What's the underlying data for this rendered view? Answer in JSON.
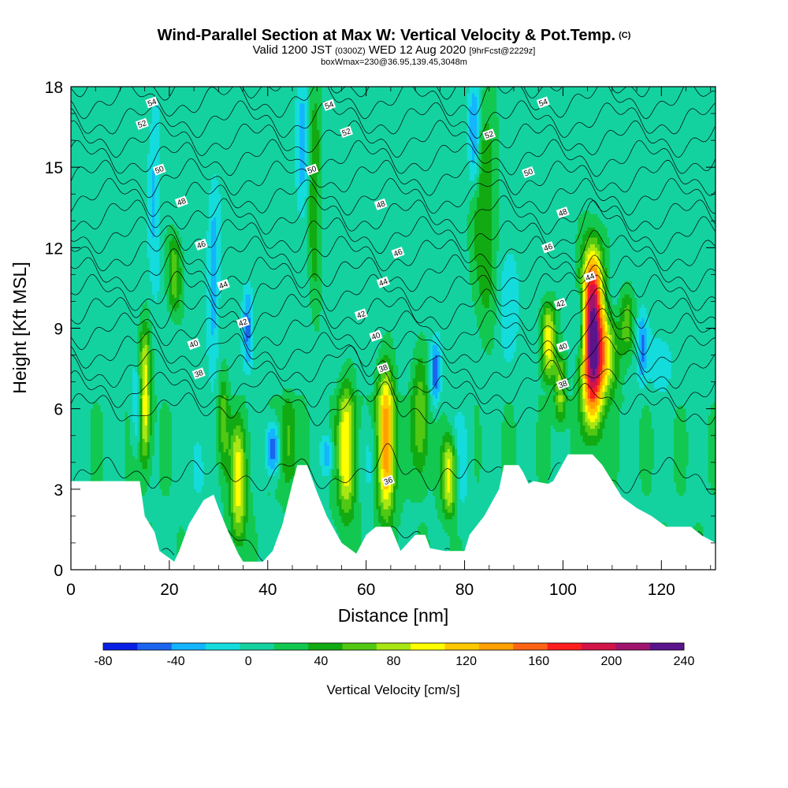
{
  "title": {
    "main": "Wind-Parallel Section at Max W: Vertical Velocity & Pot.Temp.",
    "copyright": "(C)",
    "valid_prefix": "Valid 1200 JST",
    "valid_utc": "(0300Z)",
    "valid_date": "WED 12 Aug 2020",
    "forecast": "[9hrFcst@2229z]",
    "box_info": "boxWmax=230@36.95,139.45,3048m"
  },
  "chart_data": {
    "type": "heatmap",
    "xlabel": "Distance [nm]",
    "ylabel": "Height [Kft MSL]",
    "xlim": [
      0,
      131
    ],
    "ylim": [
      0,
      18
    ],
    "x_ticks": [
      "0",
      "20",
      "40",
      "60",
      "80",
      "100",
      "120"
    ],
    "y_ticks": [
      "0",
      "3",
      "6",
      "9",
      "12",
      "15",
      "18"
    ],
    "colorbar": {
      "title": "Vertical Velocity [cm/s]",
      "levels": [
        -80,
        -60,
        -40,
        -20,
        0,
        20,
        40,
        60,
        80,
        100,
        120,
        140,
        160,
        180,
        200,
        220,
        240
      ],
      "tick_labels": [
        "-80",
        "-40",
        "0",
        "40",
        "80",
        "120",
        "160",
        "200",
        "240"
      ],
      "colors": [
        "#0a1fe6",
        "#1a64f0",
        "#14b4ff",
        "#14dcdc",
        "#14d2a0",
        "#12c850",
        "#12aa12",
        "#50c814",
        "#a8e614",
        "#ffff00",
        "#ffc800",
        "#ffa000",
        "#ff6414",
        "#ff1e1e",
        "#d21446",
        "#a0146e",
        "#5a148c"
      ]
    },
    "terrain_kft": [
      [
        0,
        3.3
      ],
      [
        14,
        3.3
      ],
      [
        15,
        2.0
      ],
      [
        17,
        1.4
      ],
      [
        18,
        0.7
      ],
      [
        21,
        0.3
      ],
      [
        22,
        0.7
      ],
      [
        24,
        1.7
      ],
      [
        27,
        2.6
      ],
      [
        29,
        2.8
      ],
      [
        30,
        2.3
      ],
      [
        32,
        1.4
      ],
      [
        34,
        0.6
      ],
      [
        35,
        0.3
      ],
      [
        39,
        0.3
      ],
      [
        41,
        0.7
      ],
      [
        43,
        1.7
      ],
      [
        45,
        3.2
      ],
      [
        46,
        3.9
      ],
      [
        48,
        3.9
      ],
      [
        50,
        2.9
      ],
      [
        52,
        2.0
      ],
      [
        55,
        1.0
      ],
      [
        58,
        0.6
      ],
      [
        60,
        1.3
      ],
      [
        62,
        1.6
      ],
      [
        65,
        1.6
      ],
      [
        67,
        0.7
      ],
      [
        68,
        0.9
      ],
      [
        70,
        1.3
      ],
      [
        72,
        1.3
      ],
      [
        73,
        0.8
      ],
      [
        76,
        0.7
      ],
      [
        80,
        0.7
      ],
      [
        81,
        1.3
      ],
      [
        84,
        2.0
      ],
      [
        87,
        3.0
      ],
      [
        88,
        3.9
      ],
      [
        91,
        3.9
      ],
      [
        92,
        3.6
      ],
      [
        93,
        3.2
      ],
      [
        94,
        3.3
      ],
      [
        97,
        3.2
      ],
      [
        98,
        3.3
      ],
      [
        101,
        4.3
      ],
      [
        106,
        4.3
      ],
      [
        108,
        3.9
      ],
      [
        110,
        3.3
      ],
      [
        112,
        2.7
      ],
      [
        115,
        2.3
      ],
      [
        118,
        2.0
      ],
      [
        121,
        1.6
      ],
      [
        126,
        1.6
      ],
      [
        128,
        1.3
      ],
      [
        131,
        1.0
      ]
    ],
    "updrafts": [
      {
        "x": 15.0,
        "y0": 4.0,
        "y1": 9.0,
        "width": 1.2,
        "peak": 100
      },
      {
        "x": 21.0,
        "y0": 9.5,
        "y1": 12.5,
        "width": 1.5,
        "peak": 60
      },
      {
        "x": 31.0,
        "y0": 3.5,
        "y1": 7.5,
        "width": 1.2,
        "peak": 50
      },
      {
        "x": 34.0,
        "y0": 1.0,
        "y1": 5.5,
        "width": 1.6,
        "peak": 90
      },
      {
        "x": 44.0,
        "y0": 3.0,
        "y1": 6.5,
        "width": 1.8,
        "peak": 50
      },
      {
        "x": 49.5,
        "y0": 10.0,
        "y1": 18.0,
        "width": 1.2,
        "peak": 50
      },
      {
        "x": 56.0,
        "y0": 2.0,
        "y1": 7.0,
        "width": 1.8,
        "peak": 100
      },
      {
        "x": 64.0,
        "y0": 2.0,
        "y1": 7.5,
        "width": 1.8,
        "peak": 140
      },
      {
        "x": 71.0,
        "y0": 3.5,
        "y1": 8.0,
        "width": 1.8,
        "peak": 60
      },
      {
        "x": 77.0,
        "y0": 2.0,
        "y1": 5.0,
        "width": 1.5,
        "peak": 100
      },
      {
        "x": 84.0,
        "y0": 9.0,
        "y1": 17.5,
        "width": 2.5,
        "peak": 50
      },
      {
        "x": 97.0,
        "y0": 7.0,
        "y1": 10.0,
        "width": 1.5,
        "peak": 100
      },
      {
        "x": 99.5,
        "y0": 5.5,
        "y1": 8.0,
        "width": 1.2,
        "peak": 70
      },
      {
        "x": 106.0,
        "y0": 5.5,
        "y1": 12.0,
        "width": 2.2,
        "peak": 230
      },
      {
        "x": 109.0,
        "y0": 6.5,
        "y1": 9.5,
        "width": 2.5,
        "peak": 80
      },
      {
        "x": 113.0,
        "y0": 8.0,
        "y1": 10.5,
        "width": 1.5,
        "peak": 50
      }
    ],
    "downdrafts": [
      {
        "x": 13.5,
        "y0": 4.5,
        "y1": 7.5,
        "width": 1.0,
        "peak": -45
      },
      {
        "x": 17.0,
        "y0": 10.0,
        "y1": 17.5,
        "width": 1.2,
        "peak": -30
      },
      {
        "x": 26.0,
        "y0": 2.0,
        "y1": 6.0,
        "width": 2.5,
        "peak": -25
      },
      {
        "x": 29.0,
        "y0": 7.0,
        "y1": 14.0,
        "width": 1.2,
        "peak": -40
      },
      {
        "x": 36.0,
        "y0": 7.5,
        "y1": 10.5,
        "width": 1.0,
        "peak": -60
      },
      {
        "x": 41.0,
        "y0": 3.5,
        "y1": 5.5,
        "width": 1.6,
        "peak": -70
      },
      {
        "x": 47.0,
        "y0": 13.0,
        "y1": 18.0,
        "width": 1.2,
        "peak": -40
      },
      {
        "x": 52.0,
        "y0": 3.5,
        "y1": 5.0,
        "width": 1.2,
        "peak": -45
      },
      {
        "x": 61.0,
        "y0": 2.5,
        "y1": 5.5,
        "width": 2.0,
        "peak": -30
      },
      {
        "x": 74.0,
        "y0": 6.0,
        "y1": 8.5,
        "width": 1.0,
        "peak": -60
      },
      {
        "x": 79.0,
        "y0": 2.0,
        "y1": 6.0,
        "width": 2.0,
        "peak": -35
      },
      {
        "x": 82.0,
        "y0": 14.0,
        "y1": 18.0,
        "width": 1.2,
        "peak": -60
      },
      {
        "x": 89.0,
        "y0": 8.0,
        "y1": 12.0,
        "width": 2.0,
        "peak": -25
      },
      {
        "x": 103.5,
        "y0": 8.0,
        "y1": 10.5,
        "width": 1.0,
        "peak": -50
      },
      {
        "x": 116.0,
        "y0": 7.0,
        "y1": 9.5,
        "width": 1.0,
        "peak": -50
      },
      {
        "x": 120.0,
        "y0": 6.5,
        "y1": 9.0,
        "width": 2.5,
        "peak": -20
      }
    ],
    "theta_labels": [
      {
        "text": "54",
        "x": 16.5,
        "y": 17.4
      },
      {
        "text": "54",
        "x": 52.5,
        "y": 17.3
      },
      {
        "text": "54",
        "x": 96.0,
        "y": 17.4
      },
      {
        "text": "52",
        "x": 14.5,
        "y": 16.6
      },
      {
        "text": "52",
        "x": 56.0,
        "y": 16.3
      },
      {
        "text": "52",
        "x": 85.0,
        "y": 16.2
      },
      {
        "text": "50",
        "x": 18.0,
        "y": 14.9
      },
      {
        "text": "50",
        "x": 49.0,
        "y": 14.9
      },
      {
        "text": "50",
        "x": 93.0,
        "y": 14.8
      },
      {
        "text": "48",
        "x": 22.5,
        "y": 13.7
      },
      {
        "text": "48",
        "x": 63.0,
        "y": 13.6
      },
      {
        "text": "48",
        "x": 100.0,
        "y": 13.3
      },
      {
        "text": "46",
        "x": 26.5,
        "y": 12.1
      },
      {
        "text": "46",
        "x": 66.5,
        "y": 11.8
      },
      {
        "text": "46",
        "x": 97.0,
        "y": 12.0
      },
      {
        "text": "44",
        "x": 31.0,
        "y": 10.6
      },
      {
        "text": "44",
        "x": 63.5,
        "y": 10.7
      },
      {
        "text": "44",
        "x": 105.5,
        "y": 10.9
      },
      {
        "text": "42",
        "x": 35.0,
        "y": 9.2
      },
      {
        "text": "42",
        "x": 59.0,
        "y": 9.5
      },
      {
        "text": "42",
        "x": 99.5,
        "y": 9.9
      },
      {
        "text": "40",
        "x": 25.0,
        "y": 8.4
      },
      {
        "text": "40",
        "x": 62.0,
        "y": 8.7
      },
      {
        "text": "40",
        "x": 100.0,
        "y": 8.3
      },
      {
        "text": "38",
        "x": 26.0,
        "y": 7.3
      },
      {
        "text": "38",
        "x": 63.5,
        "y": 7.5
      },
      {
        "text": "38",
        "x": 100.0,
        "y": 6.9
      },
      {
        "text": "36",
        "x": 64.5,
        "y": 3.3
      }
    ]
  }
}
